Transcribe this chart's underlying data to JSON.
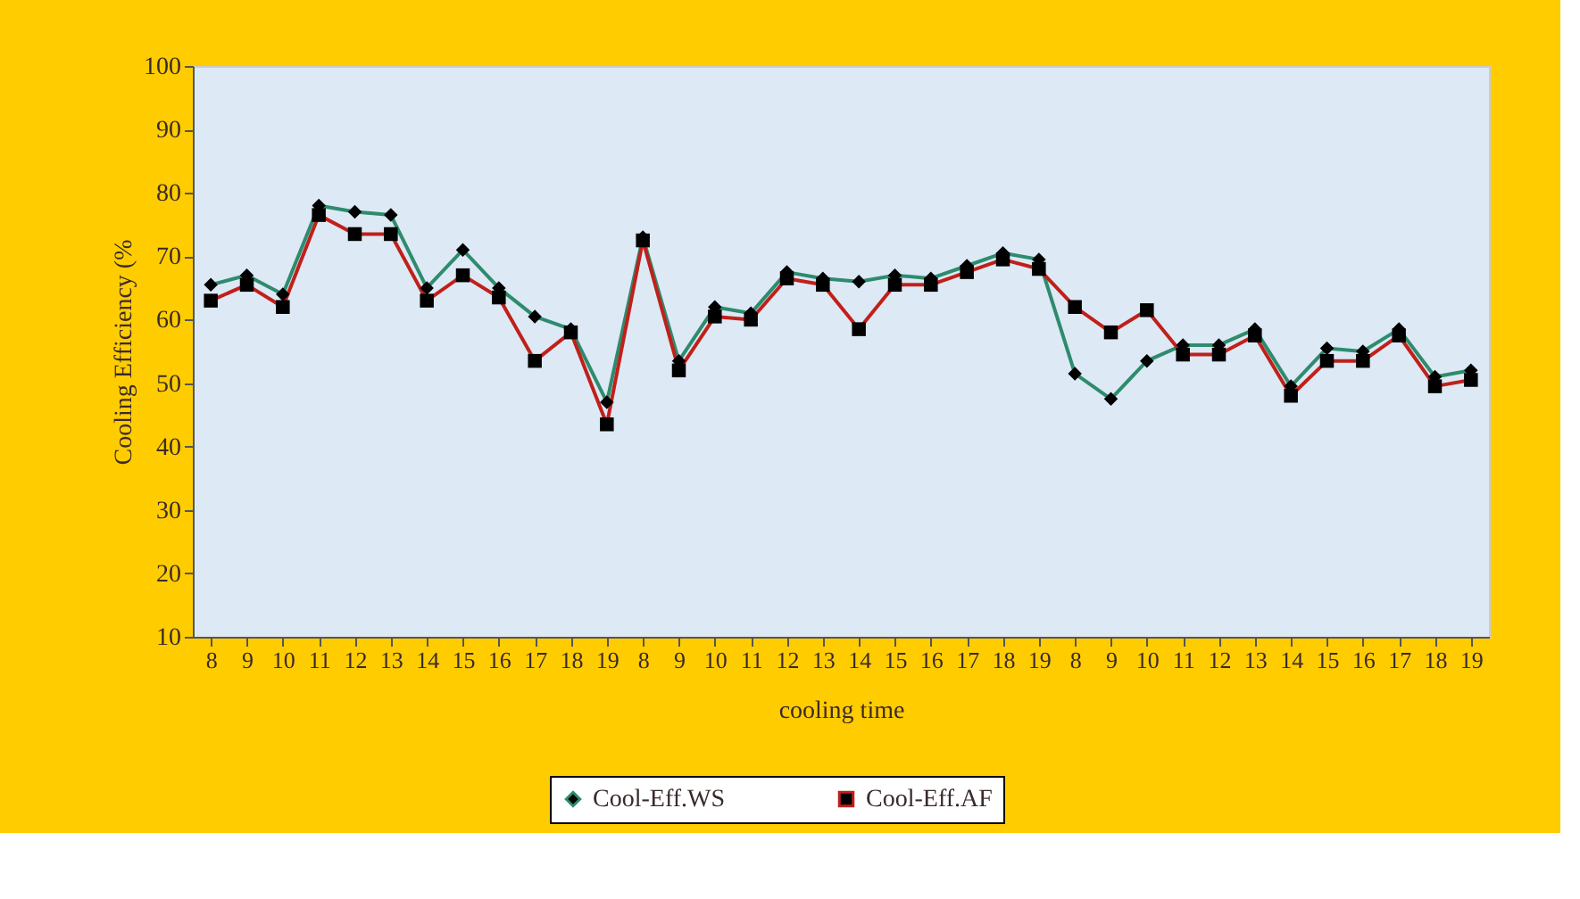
{
  "chart_data": {
    "type": "line",
    "xlabel": "cooling time",
    "ylabel": "Cooling Efficiency (%",
    "categories": [
      "8",
      "9",
      "10",
      "11",
      "12",
      "13",
      "14",
      "15",
      "16",
      "17",
      "18",
      "19",
      "8",
      "9",
      "10",
      "11",
      "12",
      "13",
      "14",
      "15",
      "16",
      "17",
      "18",
      "19",
      "8",
      "9",
      "10",
      "11",
      "12",
      "13",
      "14",
      "15",
      "16",
      "17",
      "18",
      "19"
    ],
    "ylim": [
      10,
      100
    ],
    "yticks": [
      10,
      20,
      30,
      40,
      50,
      60,
      70,
      80,
      90,
      100
    ],
    "grid": false,
    "legend": "bottom",
    "line_style": "solid",
    "series": [
      {
        "name": "Cool-Eff.WS",
        "color": "#2e8b6e",
        "marker": "diamond",
        "values": [
          65.5,
          67,
          64,
          78,
          77,
          76.5,
          65,
          71,
          65,
          60.5,
          58.5,
          47,
          73,
          53.5,
          62,
          61,
          67.5,
          66.5,
          66,
          67,
          66.5,
          68.5,
          70.5,
          69.5,
          51.5,
          47.5,
          53.5,
          56,
          56,
          58.5,
          49.5,
          55.5,
          55,
          58.5,
          51,
          52
        ]
      },
      {
        "name": "Cool-Eff.AF",
        "color": "#c0201a",
        "marker": "square",
        "values": [
          63,
          65.5,
          62,
          76.5,
          73.5,
          73.5,
          63,
          67,
          63.5,
          53.5,
          58,
          43.5,
          72.5,
          52,
          60.5,
          60,
          66.5,
          65.5,
          58.5,
          65.5,
          65.5,
          67.5,
          69.5,
          68,
          62,
          58,
          61.5,
          54.5,
          54.5,
          57.5,
          48,
          53.5,
          53.5,
          57.5,
          49.5,
          50.5
        ]
      }
    ]
  }
}
